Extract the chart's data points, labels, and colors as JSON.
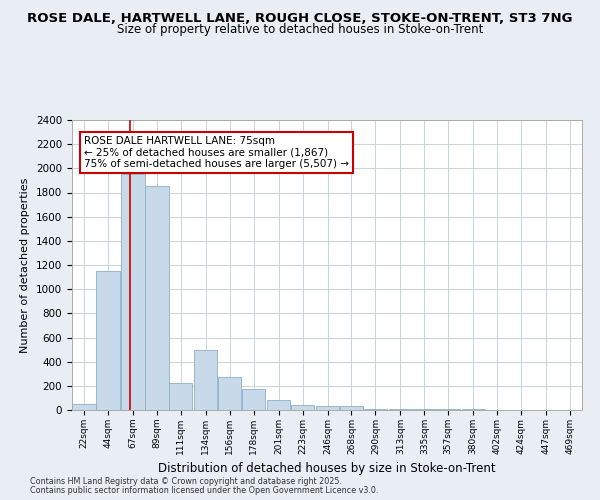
{
  "title": "ROSE DALE, HARTWELL LANE, ROUGH CLOSE, STOKE-ON-TRENT, ST3 7NG",
  "subtitle": "Size of property relative to detached houses in Stoke-on-Trent",
  "xlabel": "Distribution of detached houses by size in Stoke-on-Trent",
  "ylabel": "Number of detached properties",
  "footer1": "Contains HM Land Registry data © Crown copyright and database right 2025.",
  "footer2": "Contains public sector information licensed under the Open Government Licence v3.0.",
  "annotation_title": "ROSE DALE HARTWELL LANE: 75sqm",
  "annotation_line1": "← 25% of detached houses are smaller (1,867)",
  "annotation_line2": "75% of semi-detached houses are larger (5,507) →",
  "bar_bins": [
    22,
    44,
    67,
    89,
    111,
    134,
    156,
    178,
    201,
    223,
    246,
    268,
    290,
    313,
    335,
    357,
    380,
    402,
    424,
    447,
    469
  ],
  "bar_values": [
    50,
    1150,
    1950,
    1850,
    220,
    500,
    270,
    170,
    80,
    40,
    30,
    30,
    5,
    5,
    5,
    5,
    5,
    2,
    2,
    2
  ],
  "bar_color": "#c8daea",
  "bar_edge_color": "#8ab0c8",
  "vline_color": "#cc0000",
  "vline_x": 75,
  "ylim": [
    0,
    2400
  ],
  "yticks": [
    0,
    200,
    400,
    600,
    800,
    1000,
    1200,
    1400,
    1600,
    1800,
    2000,
    2200,
    2400
  ],
  "bg_color": "#e8eef4",
  "plot_bg_color": "#ffffff",
  "title_fontsize": 9.5,
  "subtitle_fontsize": 8.5,
  "xlabel_fontsize": 8.5,
  "ylabel_fontsize": 8,
  "annotation_box_color": "#cc0000",
  "grid_color": "#c8d4dc"
}
